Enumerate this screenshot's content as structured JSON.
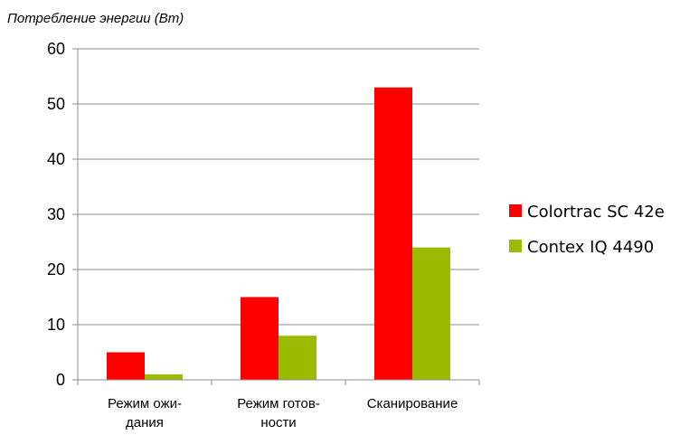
{
  "chart_data": {
    "type": "bar",
    "title": "",
    "ylabel": "Потребление энергии (Вт)",
    "xlabel": "",
    "categories": [
      [
        "Режим ожи-",
        "дания"
      ],
      [
        "Режим готов-",
        "ности"
      ],
      [
        "Сканирование"
      ]
    ],
    "series": [
      {
        "name": "Colortrac SC 42e",
        "color": "#ff0000",
        "values": [
          5,
          15,
          53
        ]
      },
      {
        "name": "Contex IQ 4490",
        "color": "#99bb00",
        "values": [
          1,
          8,
          24
        ]
      }
    ],
    "ylim": [
      0,
      60
    ],
    "yticks": [
      "0",
      "10",
      "20",
      "30",
      "40",
      "50",
      "60"
    ],
    "grid": true,
    "legend_position": "right"
  }
}
